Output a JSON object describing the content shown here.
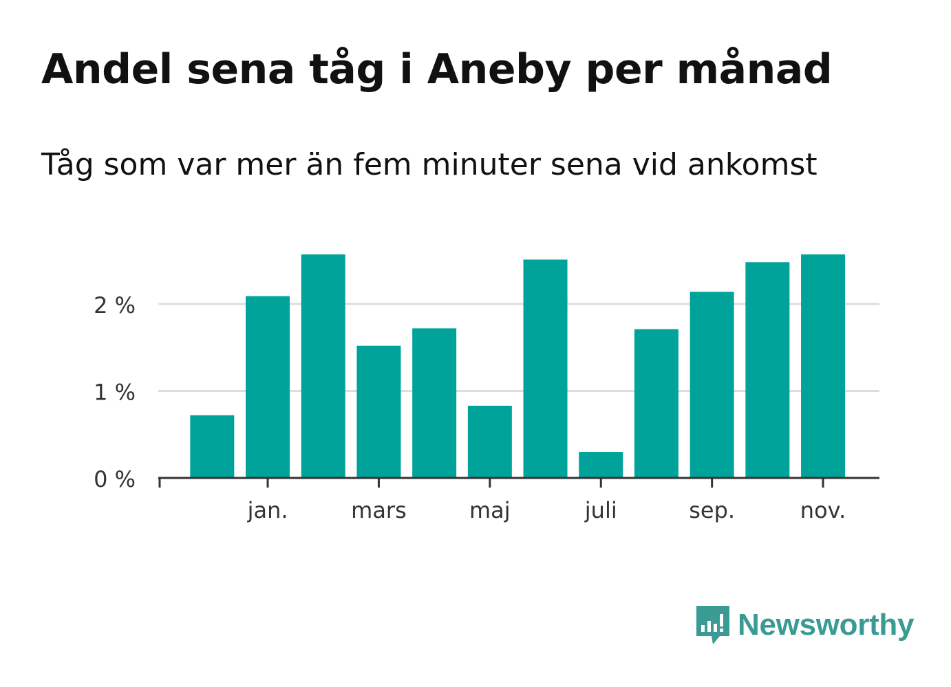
{
  "title": "Andel sena tåg i Aneby per månad",
  "subtitle": "Tåg som var mer än fem minuter sena vid ankomst",
  "brand": {
    "name": "Newsworthy",
    "icon": "newsworthy-logo-icon",
    "color": "#3a9a94"
  },
  "colors": {
    "bar": "#00a39a",
    "grid": "#dddddd",
    "axis": "#333333",
    "text": "#333333"
  },
  "chart_data": {
    "type": "bar",
    "title": "Andel sena tåg i Aneby per månad",
    "subtitle": "Tåg som var mer än fem minuter sena vid ankomst",
    "xlabel": "",
    "ylabel": "",
    "ylim": [
      0,
      2.8
    ],
    "grid": true,
    "x_tick_labels": [
      "jan.",
      "mars",
      "maj",
      "juli",
      "sep.",
      "nov."
    ],
    "x_tick_bar_index": [
      1,
      3,
      5,
      7,
      9,
      11
    ],
    "y_ticks": [
      0,
      1,
      2
    ],
    "y_tick_labels": [
      "0 %",
      "1 %",
      "2 %"
    ],
    "values": [
      0.72,
      2.09,
      2.57,
      1.52,
      1.72,
      0.83,
      2.51,
      0.3,
      1.71,
      2.14,
      2.48,
      2.57
    ]
  }
}
